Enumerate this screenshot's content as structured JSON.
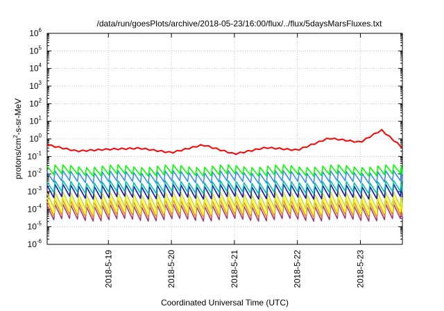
{
  "chart_data": {
    "type": "line",
    "title": "/data/run/goesPlots/archive/2018-05-23/16:00/flux/../flux/5daysMarsFluxes.txt",
    "xlabel": "Coordinated Universal Time (UTC)",
    "ylabel": {
      "prefix": "protons/cm",
      "sup": "2",
      "suffix": "-s-sr-MeV"
    },
    "log_y": true,
    "grid": true,
    "legend": "none",
    "xlim": [
      "2018-05-18 00:40",
      "2018-05-23 16:00"
    ],
    "ylim_exponents": [
      -6,
      6
    ],
    "xticks": [
      "2018-5-19",
      "2018-5-20",
      "2018-5-21",
      "2018-5-22",
      "2018-5-23"
    ],
    "xtick_dates": [
      "2018-05-19",
      "2018-05-20",
      "2018-05-21",
      "2018-05-22",
      "2018-05-23"
    ],
    "ytick_base": "10",
    "ytick_exponents": [
      "-6",
      "-5",
      "-4",
      "-3",
      "-2",
      "-1",
      "0",
      "1",
      "2",
      "3",
      "4",
      "5",
      "6"
    ],
    "series_trend": {
      "dates": [
        "2018-05-18 00:40",
        "2018-05-18 12:00",
        "2018-05-19 00:00",
        "2018-05-19 12:00",
        "2018-05-20 00:00",
        "2018-05-20 12:00",
        "2018-05-21 00:00",
        "2018-05-21 12:00",
        "2018-05-22 00:00",
        "2018-05-22 12:00",
        "2018-05-23 00:00",
        "2018-05-23 08:00",
        "2018-05-23 16:00"
      ],
      "red": [
        0.5,
        0.22,
        0.28,
        0.32,
        0.18,
        0.5,
        0.15,
        0.35,
        0.25,
        1.2,
        0.7,
        3.5,
        0.35
      ]
    },
    "series": [
      {
        "color": "#ff0000",
        "sawtooth": false
      },
      {
        "color": "#00ff00",
        "high": 0.028,
        "low": 0.009
      },
      {
        "color": "#2f8ff0",
        "high": 0.013,
        "low": 0.0035
      },
      {
        "color": "#00c0a8",
        "high": 0.0035,
        "low": 0.0009
      },
      {
        "color": "#1010c8",
        "high": 0.0022,
        "low": 0.00045
      },
      {
        "color": "#c8d830",
        "high": 0.0008,
        "low": 0.00012
      },
      {
        "color": "#ffff00",
        "high": 0.00045,
        "low": 6e-05
      },
      {
        "color": "#f08a28",
        "high": 0.00028,
        "low": 4e-05
      },
      {
        "color": "#a03a7a",
        "high": 0.00016,
        "low": 2.5e-05
      }
    ]
  }
}
